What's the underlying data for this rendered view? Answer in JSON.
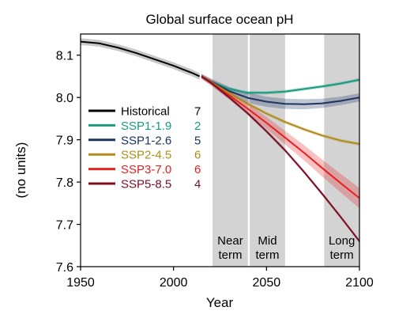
{
  "chart_data": {
    "type": "line",
    "title": "Global surface ocean pH",
    "xlabel": "Year",
    "ylabel": "(no units)",
    "xlim": [
      1950,
      2100
    ],
    "ylim": [
      7.6,
      8.15
    ],
    "xticks": [
      1950,
      2000,
      2050,
      2100
    ],
    "yticks": [
      7.6,
      7.7,
      7.8,
      7.9,
      8.0,
      8.1
    ],
    "ytick_labels": [
      "7.6",
      "7.7",
      "7.8",
      "7.9",
      "8.0",
      "8.1"
    ],
    "grid": false,
    "legend_position": "upper-left",
    "periods": [
      {
        "label_lines": [
          "Near",
          "term"
        ],
        "x_range": [
          2021,
          2040
        ]
      },
      {
        "label_lines": [
          "Mid",
          "term"
        ],
        "x_range": [
          2041,
          2060
        ]
      },
      {
        "label_lines": [
          "Long",
          "term"
        ],
        "x_range": [
          2081,
          2100
        ]
      }
    ],
    "series": [
      {
        "name": "Historical",
        "count": "7",
        "color": "#000000",
        "x": [
          1950,
          1960,
          1970,
          1980,
          1990,
          2000,
          2010,
          2014
        ],
        "y": [
          8.132,
          8.128,
          8.118,
          8.105,
          8.09,
          8.075,
          8.058,
          8.05
        ],
        "spread": [
          0.008,
          0.008,
          0.008,
          0.008,
          0.008,
          0.008,
          0.008,
          0.008
        ]
      },
      {
        "name": "SSP1-1.9",
        "count": "2",
        "color": "#1a9a7e",
        "x": [
          2015,
          2020,
          2030,
          2040,
          2050,
          2060,
          2070,
          2080,
          2090,
          2100
        ],
        "y": [
          8.05,
          8.038,
          8.02,
          8.011,
          8.011,
          8.014,
          8.02,
          8.026,
          8.033,
          8.042
        ],
        "spread": [
          0.004,
          0.004,
          0.004,
          0.004,
          0.004,
          0.004,
          0.004,
          0.004,
          0.004,
          0.004
        ]
      },
      {
        "name": "SSP1-2.6",
        "count": "5",
        "color": "#1d3461",
        "x": [
          2015,
          2020,
          2030,
          2040,
          2050,
          2060,
          2070,
          2080,
          2090,
          2100
        ],
        "y": [
          8.05,
          8.038,
          8.015,
          7.999,
          7.99,
          7.985,
          7.984,
          7.986,
          7.992,
          8.0
        ],
        "spread": [
          0.006,
          0.007,
          0.01,
          0.012,
          0.012,
          0.012,
          0.012,
          0.011,
          0.01,
          0.01
        ]
      },
      {
        "name": "SSP2-4.5",
        "count": "6",
        "color": "#b08d1a",
        "x": [
          2015,
          2020,
          2030,
          2040,
          2050,
          2060,
          2070,
          2080,
          2090,
          2100
        ],
        "y": [
          8.05,
          8.037,
          8.01,
          7.985,
          7.962,
          7.942,
          7.925,
          7.91,
          7.898,
          7.89
        ],
        "spread": [
          0.004,
          0.004,
          0.004,
          0.004,
          0.004,
          0.004,
          0.004,
          0.004,
          0.004,
          0.004
        ]
      },
      {
        "name": "SSP3-7.0",
        "count": "6",
        "color": "#e8201f",
        "x": [
          2015,
          2020,
          2030,
          2040,
          2050,
          2060,
          2070,
          2080,
          2090,
          2100
        ],
        "y": [
          8.05,
          8.036,
          8.005,
          7.973,
          7.94,
          7.905,
          7.87,
          7.833,
          7.797,
          7.762
        ],
        "spread": [
          0.006,
          0.008,
          0.01,
          0.012,
          0.014,
          0.016,
          0.018,
          0.02,
          0.022,
          0.024
        ]
      },
      {
        "name": "SSP5-8.5",
        "count": "4",
        "color": "#7b0e23",
        "x": [
          2015,
          2020,
          2030,
          2040,
          2050,
          2060,
          2070,
          2080,
          2090,
          2100
        ],
        "y": [
          8.05,
          8.035,
          8.0,
          7.962,
          7.92,
          7.875,
          7.825,
          7.772,
          7.717,
          7.66
        ],
        "spread": [
          0.004,
          0.004,
          0.004,
          0.004,
          0.004,
          0.004,
          0.004,
          0.004,
          0.004,
          0.004
        ]
      }
    ]
  }
}
